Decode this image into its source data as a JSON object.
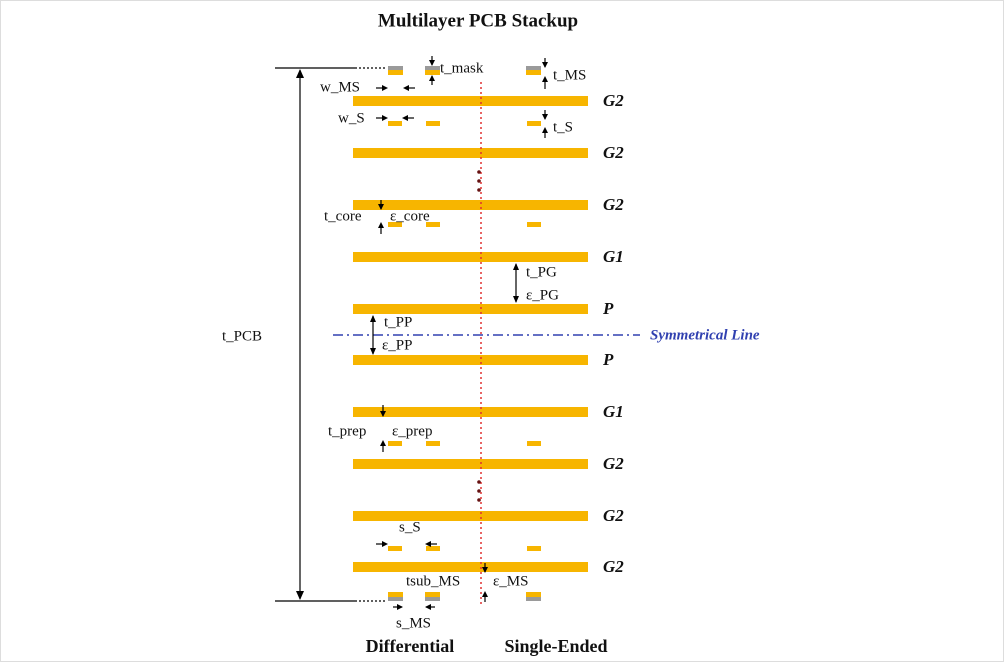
{
  "title": "Multilayer PCB Stackup",
  "layers": [
    {
      "label": "G2"
    },
    {
      "label": "G2"
    },
    {
      "label": "G2"
    },
    {
      "label": "G1"
    },
    {
      "label": "P"
    },
    {
      "label": "P"
    },
    {
      "label": "G1"
    },
    {
      "label": "G2"
    },
    {
      "label": "G2"
    },
    {
      "label": "G2"
    }
  ],
  "annotations": {
    "w_MS": "w_MS",
    "t_mask": "t_mask",
    "t_MS": "t_MS",
    "w_S": "w_S",
    "t_S": "t_S",
    "t_core": "t_core",
    "e_core": "ε_core",
    "t_PG": "t_PG",
    "e_PG": "ε_PG",
    "t_PP": "t_PP",
    "e_PP": "ε_PP",
    "t_PCB": "t_PCB",
    "t_prep": "t_prep",
    "e_prep": "ε_prep",
    "s_S": "s_S",
    "tsub_MS": "tsub_MS",
    "e_MS": "ε_MS",
    "s_MS": "s_MS"
  },
  "symmetrical_line": "Symmetrical Line",
  "footer": {
    "differential": "Differential",
    "single_ended": "Single-Ended"
  }
}
